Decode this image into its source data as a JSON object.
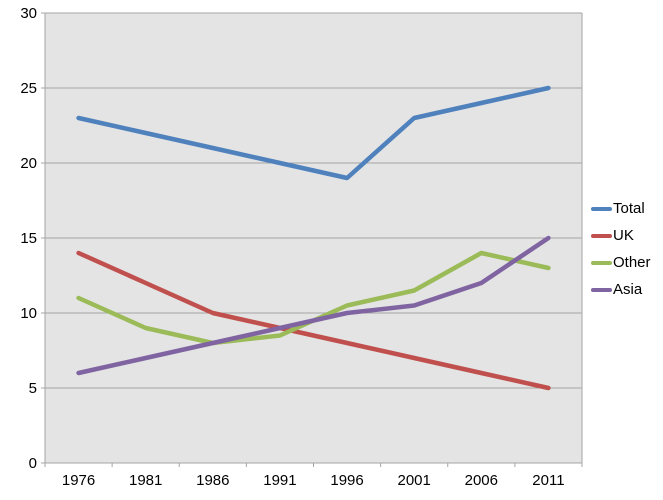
{
  "chart_data": {
    "type": "line",
    "title": "",
    "xlabel": "",
    "ylabel": "",
    "categories": [
      "1976",
      "1981",
      "1986",
      "1991",
      "1996",
      "2001",
      "2006",
      "2011"
    ],
    "series": [
      {
        "name": "Total",
        "color": "#4F81BD",
        "values": [
          23,
          22,
          21,
          20,
          19,
          23,
          24,
          25
        ]
      },
      {
        "name": "UK",
        "color": "#C0504D",
        "values": [
          14,
          12,
          10,
          9,
          8,
          7,
          6,
          5
        ]
      },
      {
        "name": "Other",
        "color": "#9BBB59",
        "values": [
          11,
          9,
          8,
          8.5,
          10.5,
          11.5,
          14,
          13
        ]
      },
      {
        "name": "Asia",
        "color": "#8064A2",
        "values": [
          6,
          7,
          8,
          9,
          10,
          10.5,
          12,
          15
        ]
      }
    ],
    "ylim": [
      0,
      30
    ],
    "ytick_step": 5,
    "ytick_labels": [
      "0",
      "5",
      "10",
      "15",
      "20",
      "25",
      "30"
    ],
    "grid": true,
    "legend_position": "right",
    "plot_background_color": "#E4E4E4",
    "gridline_color": "#A5A5A5",
    "axis_line_color": "#A5A5A5",
    "tick_label_color": "#000000",
    "page_background_color": "#FFFFFF"
  }
}
